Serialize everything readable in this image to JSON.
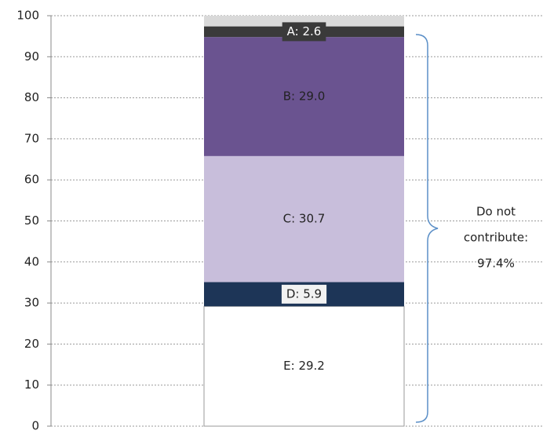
{
  "chart_data": {
    "type": "stacked-bar",
    "ylim": [
      0,
      100
    ],
    "yticks": [
      0,
      10,
      20,
      30,
      40,
      50,
      60,
      70,
      80,
      90,
      100
    ],
    "grid": true,
    "series": [
      {
        "color": "#ffffff",
        "values": [
          29.2
        ],
        "value_labels": [
          "E: 29.2"
        ],
        "label_color": "#222222"
      },
      {
        "color": "#1d3557",
        "values": [
          5.9
        ],
        "value_labels": [
          "D: 5.9"
        ],
        "label_color": "#222222",
        "label_background": "#f2f2f2"
      },
      {
        "color": "#c8bedb",
        "values": [
          30.7
        ],
        "value_labels": [
          "C: 30.7"
        ],
        "label_color": "#222222"
      },
      {
        "color": "#6a5390",
        "values": [
          29.0
        ],
        "value_labels": [
          "B: 29.0"
        ],
        "label_color": "#222222"
      },
      {
        "color": "#3a3a3a",
        "values": [
          2.6
        ],
        "value_labels": [
          "A: 2.6"
        ],
        "label_color": "#ffffff",
        "label_background": "#3a3a3a"
      },
      {
        "color": "#d9d9d9",
        "values": [
          2.6
        ]
      }
    ],
    "annotation": {
      "lines": [
        "Do not",
        "contribute:",
        "97.4%"
      ]
    }
  }
}
